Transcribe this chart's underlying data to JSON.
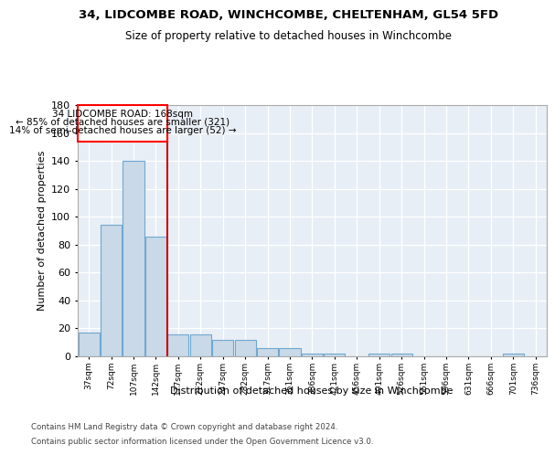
{
  "title1": "34, LIDCOMBE ROAD, WINCHCOMBE, CHELTENHAM, GL54 5FD",
  "title2": "Size of property relative to detached houses in Winchcombe",
  "xlabel": "Distribution of detached houses by size in Winchcombe",
  "ylabel": "Number of detached properties",
  "footer1": "Contains HM Land Registry data © Crown copyright and database right 2024.",
  "footer2": "Contains public sector information licensed under the Open Government Licence v3.0.",
  "annotation_line1": "34 LIDCOMBE ROAD: 168sqm",
  "annotation_line2": "← 85% of detached houses are smaller (321)",
  "annotation_line3": "14% of semi-detached houses are larger (52) →",
  "bar_color": "#c9d9e8",
  "bar_edge_color": "#6fa8d0",
  "vline_color": "#cc0000",
  "vline_x": 4,
  "bins_labels": [
    "37sqm",
    "72sqm",
    "107sqm",
    "142sqm",
    "177sqm",
    "212sqm",
    "247sqm",
    "282sqm",
    "317sqm",
    "351sqm",
    "386sqm",
    "421sqm",
    "456sqm",
    "491sqm",
    "526sqm",
    "561sqm",
    "596sqm",
    "631sqm",
    "666sqm",
    "701sqm",
    "736sqm"
  ],
  "values": [
    17,
    94,
    140,
    86,
    16,
    16,
    12,
    12,
    6,
    6,
    2,
    2,
    0,
    2,
    2,
    0,
    0,
    0,
    0,
    2,
    0
  ],
  "ylim": [
    0,
    180
  ],
  "yticks": [
    0,
    20,
    40,
    60,
    80,
    100,
    120,
    140,
    160,
    180
  ],
  "bg_color": "#e8eef5"
}
